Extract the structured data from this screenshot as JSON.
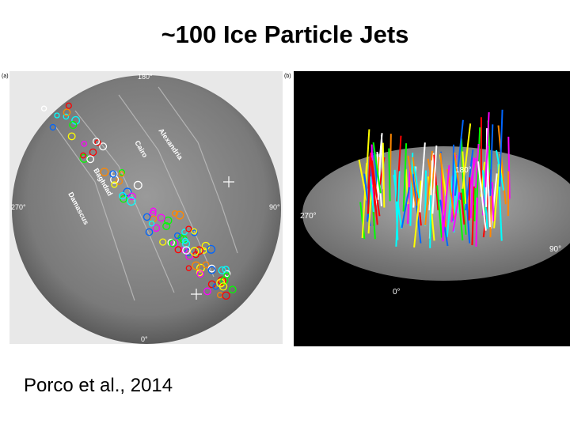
{
  "title": "~100 Ice Particle Jets",
  "citation": "Porco et al., 2014",
  "panels": [
    {
      "label": "(a)",
      "map_labels": [
        "180°",
        "270°",
        "90°",
        "0°"
      ],
      "fracture_labels": [
        "Alexandria",
        "Cairo",
        "Baghdad",
        "Damascus"
      ]
    },
    {
      "label": "(b)",
      "map_labels": [
        "180°",
        "270°",
        "90°",
        "0°"
      ]
    }
  ]
}
